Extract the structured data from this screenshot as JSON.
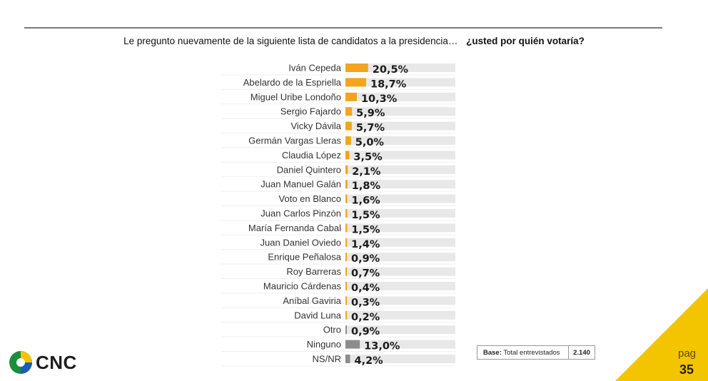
{
  "question": {
    "text": "Le pregunto nuevamente de la siguiente lista de candidatos a la presidencia…",
    "bold": "¿usted por quién votaría?"
  },
  "colors": {
    "accent_bar": "#F2A51D",
    "other_bar": "#8C8C8C",
    "track": "#E8E8E8",
    "corner": "#F3C400"
  },
  "chart_data": {
    "type": "bar",
    "orientation": "horizontal",
    "categories": [
      "Iván Cepeda",
      "Abelardo de la Espriella",
      "Miguel Uribe Londoño",
      "Sergio Fajardo",
      "Vicky Dávila",
      "Germán Vargas Lleras",
      "Claudia López",
      "Daniel Quintero",
      "Juan Manuel Galán",
      "Voto en Blanco",
      "Juan Carlos Pinzón",
      "María Fernanda Cabal",
      "Juan Daniel Oviedo",
      "Enrique Peñalosa",
      "Roy Barreras",
      "Mauricio Cárdenas",
      "Aníbal Gaviria",
      "David Luna",
      "Otro",
      "Ninguno",
      "NS/NR"
    ],
    "values": [
      20.5,
      18.7,
      10.3,
      5.9,
      5.7,
      5.0,
      3.5,
      2.1,
      1.8,
      1.6,
      1.5,
      1.5,
      1.4,
      0.9,
      0.7,
      0.4,
      0.3,
      0.2,
      0.9,
      13.0,
      4.2
    ],
    "labels": [
      "20,5%",
      "18,7%",
      "10,3%",
      "5,9%",
      "5,7%",
      "5,0%",
      "3,5%",
      "2,1%",
      "1,8%",
      "1,6%",
      "1,5%",
      "1,5%",
      "1,4%",
      "0,9%",
      "0,7%",
      "0,4%",
      "0,3%",
      "0,2%",
      "0,9%",
      "13,0%",
      "4,2%"
    ],
    "bar_colors": [
      "accent",
      "accent",
      "accent",
      "accent",
      "accent",
      "accent",
      "accent",
      "accent",
      "accent",
      "accent",
      "accent",
      "accent",
      "accent",
      "accent",
      "accent",
      "accent",
      "accent",
      "accent",
      "other",
      "other",
      "other"
    ],
    "xlim": [
      0,
      100
    ],
    "grid": false
  },
  "base": {
    "label": "Base:",
    "text": "Total entrevistados",
    "value": "2.140"
  },
  "logo": {
    "text": "CNC",
    "icon": "cnc-logo-icon"
  },
  "page": {
    "label": "pag",
    "number": "35"
  }
}
